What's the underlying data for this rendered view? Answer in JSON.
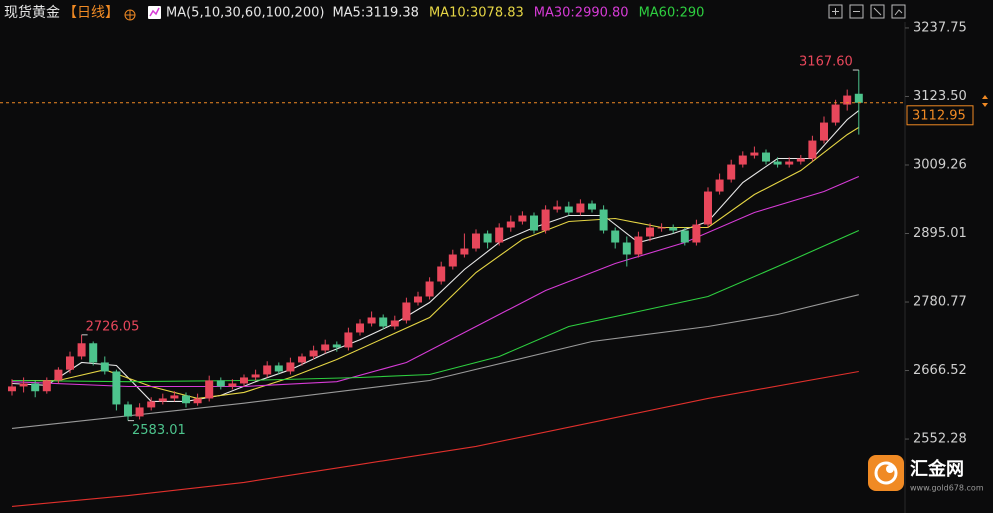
{
  "chart_data": {
    "type": "candlestick",
    "title": "现货黄金",
    "period": "【日线】",
    "indicator": "MA(5,10,30,60,100,200)",
    "up_color": "#e8475b",
    "down_color": "#4dc48d",
    "ylim": [
      2429,
      3251
    ],
    "yticks": [
      3237.75,
      {
        "value": 3123.5,
        "label": "3123.50"
      },
      3009.26,
      2895.01,
      2780.77,
      2666.52,
      2552.28
    ],
    "grid": false,
    "open": [
      2632,
      2640,
      2645,
      2632,
      2650,
      2668,
      2690,
      2712,
      2680,
      2665,
      2610,
      2590,
      2605,
      2615,
      2620,
      2625,
      2612,
      2620,
      2650,
      2640,
      2645,
      2655,
      2660,
      2675,
      2665,
      2680,
      2690,
      2700,
      2710,
      2705,
      2730,
      2745,
      2755,
      2740,
      2750,
      2780,
      2790,
      2815,
      2840,
      2860,
      2870,
      2895,
      2880,
      2905,
      2915,
      2925,
      2900,
      2935,
      2940,
      2930,
      2945,
      2935,
      2900,
      2880,
      2860,
      2890,
      2905,
      2905,
      2900,
      2880,
      2910,
      2965,
      2985,
      3010,
      3025,
      3030,
      3015,
      3010,
      3015,
      3020,
      3050,
      3080,
      3110,
      3128
    ],
    "high": [
      2652,
      2655,
      2650,
      2655,
      2672,
      2698,
      2726.05,
      2715,
      2690,
      2668,
      2615,
      2612,
      2622,
      2628,
      2632,
      2630,
      2628,
      2658,
      2655,
      2652,
      2660,
      2668,
      2682,
      2680,
      2688,
      2695,
      2708,
      2718,
      2715,
      2738,
      2752,
      2765,
      2760,
      2758,
      2788,
      2798,
      2822,
      2848,
      2868,
      2895,
      2902,
      2900,
      2912,
      2925,
      2932,
      2930,
      2942,
      2950,
      2948,
      2952,
      2950,
      2942,
      2905,
      2890,
      2898,
      2912,
      2912,
      2910,
      2905,
      2918,
      2972,
      2995,
      3018,
      3032,
      3040,
      3035,
      3022,
      3022,
      3026,
      3058,
      3090,
      3118,
      3135,
      3167.6
    ],
    "low": [
      2625,
      2630,
      2622,
      2628,
      2645,
      2662,
      2685,
      2675,
      2660,
      2600,
      2583.01,
      2585,
      2600,
      2610,
      2615,
      2605,
      2608,
      2615,
      2635,
      2635,
      2640,
      2650,
      2655,
      2660,
      2660,
      2675,
      2685,
      2695,
      2698,
      2700,
      2725,
      2740,
      2735,
      2735,
      2745,
      2775,
      2785,
      2810,
      2835,
      2855,
      2865,
      2870,
      2875,
      2898,
      2910,
      2895,
      2895,
      2930,
      2925,
      2925,
      2930,
      2895,
      2870,
      2840,
      2855,
      2882,
      2898,
      2895,
      2875,
      2875,
      2905,
      2960,
      2980,
      3005,
      3020,
      3010,
      3005,
      3005,
      3010,
      3015,
      3045,
      3075,
      3100,
      3060
    ],
    "close": [
      2640,
      2645,
      2632,
      2650,
      2668,
      2690,
      2712,
      2680,
      2665,
      2610,
      2590,
      2605,
      2615,
      2620,
      2625,
      2612,
      2620,
      2650,
      2640,
      2645,
      2655,
      2660,
      2675,
      2665,
      2680,
      2690,
      2700,
      2710,
      2705,
      2730,
      2745,
      2755,
      2740,
      2750,
      2780,
      2790,
      2815,
      2840,
      2860,
      2870,
      2895,
      2880,
      2905,
      2915,
      2925,
      2900,
      2935,
      2940,
      2930,
      2945,
      2935,
      2900,
      2880,
      2860,
      2890,
      2905,
      2905,
      2900,
      2880,
      2910,
      2965,
      2985,
      3010,
      3025,
      3030,
      3015,
      3010,
      3015,
      3020,
      3050,
      3080,
      3110,
      3125,
      3113
    ],
    "series": [
      {
        "name": "MA5:3119.38",
        "color": "#e8e8e8",
        "x": [
          0,
          3,
          6,
          9,
          12,
          15,
          18,
          21,
          24,
          27,
          30,
          33,
          36,
          39,
          42,
          45,
          48,
          51,
          54,
          57,
          60,
          63,
          66,
          69,
          72,
          73
        ],
        "values": [
          2645,
          2642,
          2680,
          2675,
          2615,
          2615,
          2625,
          2648,
          2668,
          2695,
          2718,
          2745,
          2780,
          2835,
          2880,
          2905,
          2925,
          2925,
          2880,
          2895,
          2915,
          2980,
          3020,
          3020,
          3085,
          3100
        ]
      },
      {
        "name": "MA10:3078.83",
        "color": "#e6d645",
        "x": [
          0,
          4,
          8,
          12,
          16,
          20,
          24,
          28,
          32,
          36,
          40,
          44,
          48,
          52,
          56,
          60,
          64,
          68,
          72,
          73
        ],
        "values": [
          2650,
          2650,
          2668,
          2640,
          2620,
          2630,
          2655,
          2685,
          2720,
          2755,
          2830,
          2885,
          2915,
          2920,
          2905,
          2905,
          2960,
          3000,
          3060,
          3072
        ]
      },
      {
        "name": "MA30:2990.80",
        "color": "#d63bd6",
        "x": [
          0,
          10,
          20,
          28,
          34,
          40,
          46,
          52,
          58,
          64,
          70,
          73
        ],
        "values": [
          2648,
          2640,
          2640,
          2648,
          2680,
          2740,
          2800,
          2845,
          2880,
          2930,
          2965,
          2990
        ]
      },
      {
        "name": "MA60:290",
        "color": "#2ecf40",
        "x": [
          0,
          10,
          20,
          30,
          36,
          42,
          48,
          54,
          60,
          66,
          73
        ],
        "values": [
          2650,
          2648,
          2650,
          2655,
          2660,
          2690,
          2740,
          2765,
          2790,
          2840,
          2900
        ]
      },
      {
        "color": "#9a9a9a",
        "x": [
          0,
          20,
          36,
          50,
          60,
          66,
          73
        ],
        "values": [
          2570,
          2612,
          2650,
          2715,
          2740,
          2760,
          2793
        ]
      },
      {
        "color": "#e0302c",
        "x": [
          0,
          10,
          20,
          30,
          40,
          50,
          60,
          73
        ],
        "values": [
          2440,
          2458,
          2480,
          2510,
          2540,
          2580,
          2620,
          2665
        ]
      }
    ],
    "last_price": 3112.95,
    "annotations": [
      {
        "text": "3167.60",
        "value": 3167.6,
        "color": "#e8475b"
      },
      {
        "text": "2726.05",
        "value": 2726.05,
        "color": "#e8475b"
      },
      {
        "text": "2583.01",
        "value": 2583.01,
        "color": "#4dc48d"
      }
    ]
  },
  "watermark": {
    "name": "汇金网",
    "url": "www.gold678.com"
  }
}
